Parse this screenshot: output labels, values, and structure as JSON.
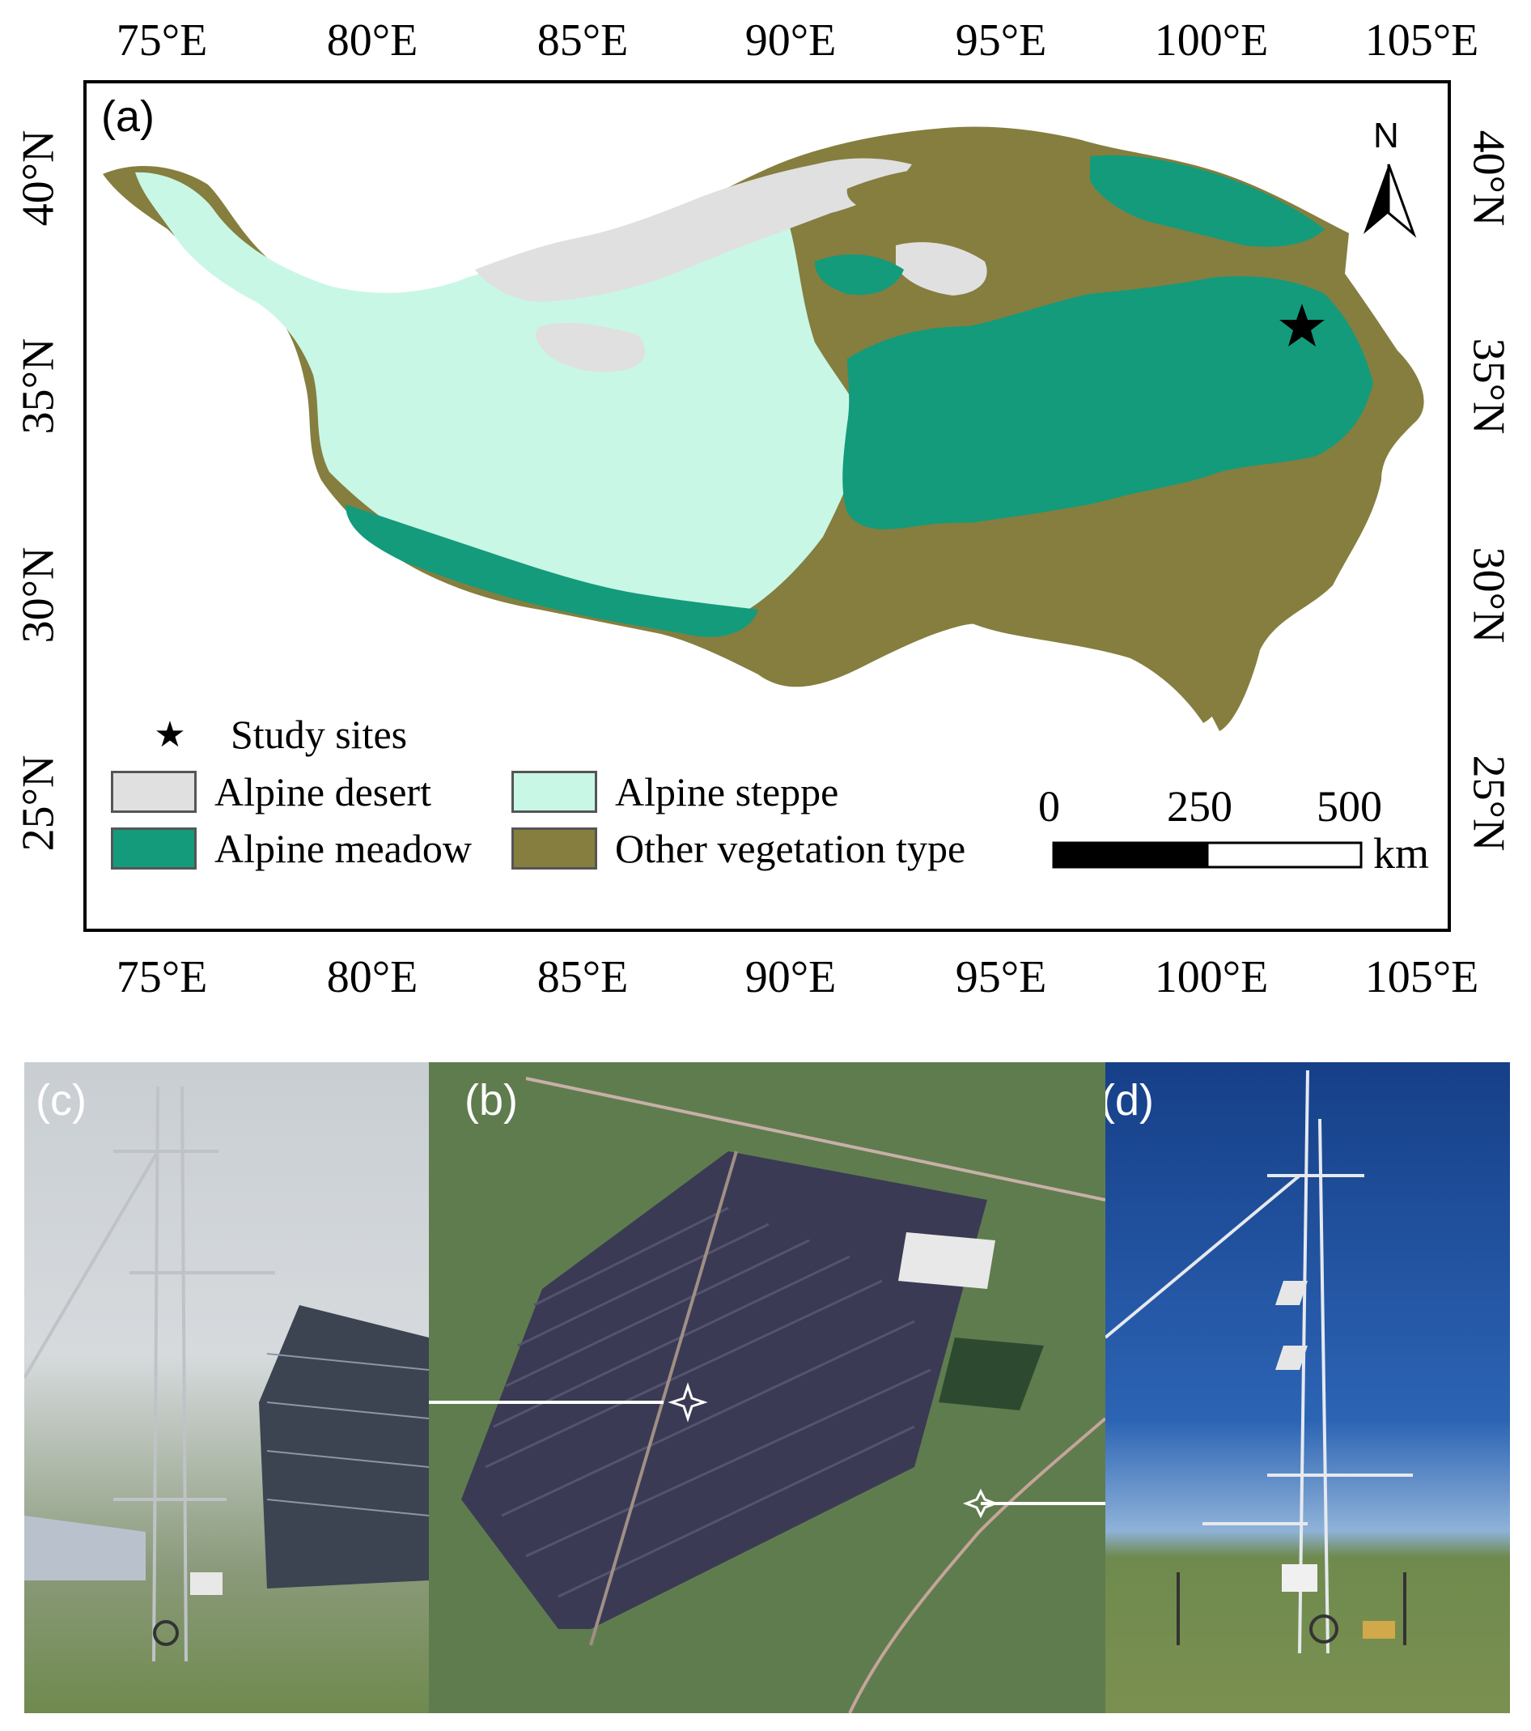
{
  "map": {
    "panel_label": "(a)",
    "north_label": "N",
    "lon_labels": [
      "75°E",
      "80°E",
      "85°E",
      "90°E",
      "95°E",
      "100°E",
      "105°E"
    ],
    "lat_labels": [
      "40°N",
      "35°N",
      "30°N",
      "25°N"
    ],
    "legend": {
      "study_sites": "Study sites",
      "items": [
        {
          "label": "Alpine desert",
          "color": "#e0e0e0"
        },
        {
          "label": "Alpine steppe",
          "color": "#c8f7e6"
        },
        {
          "label": "Alpine meadow",
          "color": "#139b7c"
        },
        {
          "label": "Other vegetation type",
          "color": "#857e3f"
        }
      ]
    },
    "scale_bar": {
      "ticks": [
        "0",
        "250",
        "500"
      ],
      "unit": "km"
    }
  },
  "photos": {
    "c_label": "(c)",
    "b_label": "(b)",
    "d_label": "(d)"
  }
}
